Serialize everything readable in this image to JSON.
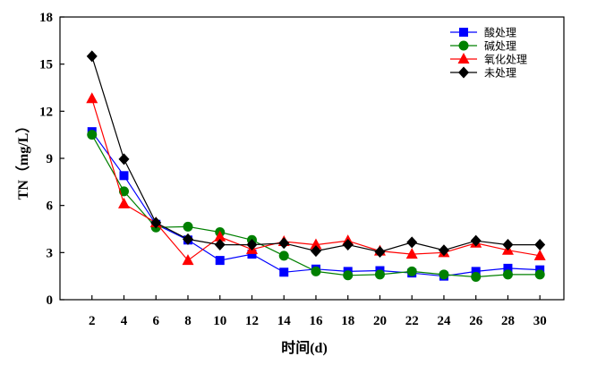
{
  "chart_data": {
    "type": "line",
    "title": "",
    "xlabel": "时间(d)",
    "ylabel": "TN（mg/L）",
    "x": [
      2,
      4,
      6,
      8,
      10,
      12,
      14,
      16,
      18,
      20,
      22,
      24,
      26,
      28,
      30
    ],
    "xticks": [
      2,
      4,
      6,
      8,
      10,
      12,
      14,
      16,
      18,
      20,
      22,
      24,
      26,
      28,
      30
    ],
    "yticks": [
      0,
      3,
      6,
      9,
      12,
      15,
      18
    ],
    "xlim": [
      0,
      31.5
    ],
    "ylim": [
      0,
      18
    ],
    "grid": false,
    "legend_position": "top-right",
    "series": [
      {
        "name": "酸处理",
        "color": "#0000ff",
        "marker": "square",
        "values": [
          10.7,
          7.9,
          4.8,
          3.8,
          2.5,
          2.9,
          1.75,
          1.95,
          1.8,
          1.85,
          1.7,
          1.5,
          1.8,
          2.0,
          1.9
        ]
      },
      {
        "name": "碱处理",
        "color": "#008000",
        "marker": "circle",
        "values": [
          10.5,
          6.9,
          4.6,
          4.65,
          4.3,
          3.8,
          2.8,
          1.8,
          1.55,
          1.6,
          1.8,
          1.6,
          1.45,
          1.6,
          1.6
        ]
      },
      {
        "name": "氧化处理",
        "color": "#ff0000",
        "marker": "triangle",
        "values": [
          12.8,
          6.1,
          4.9,
          2.5,
          4.0,
          3.2,
          3.7,
          3.5,
          3.75,
          3.1,
          2.9,
          3.0,
          3.6,
          3.15,
          2.8
        ]
      },
      {
        "name": "未处理",
        "color": "#000000",
        "marker": "diamond",
        "values": [
          15.5,
          8.95,
          4.9,
          3.85,
          3.5,
          3.5,
          3.6,
          3.1,
          3.5,
          3.05,
          3.65,
          3.15,
          3.75,
          3.5,
          3.5
        ]
      }
    ]
  }
}
